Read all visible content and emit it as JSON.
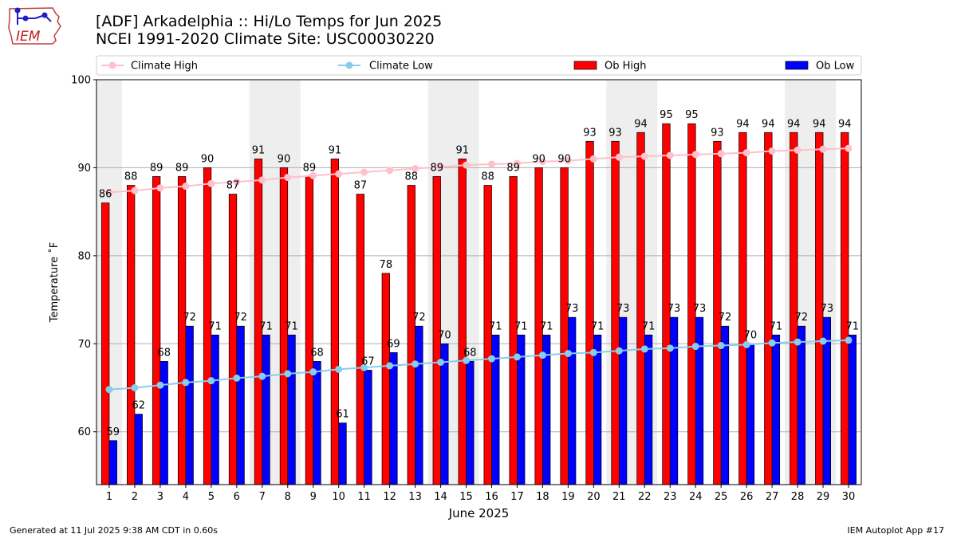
{
  "header": {
    "title_line1": "[ADF] Arkadelphia :: Hi/Lo Temps for Jun 2025",
    "title_line2": "NCEI 1991-2020 Climate Site: USC00030220",
    "logo_text": "IEM"
  },
  "footer": {
    "left": "Generated at 11 Jul 2025 9:38 AM CDT in 0.60s",
    "right": "IEM Autoplot App #17"
  },
  "colors": {
    "ob_high": "#ff0000",
    "ob_low": "#0000ff",
    "climate_high": "#ffc0cb",
    "climate_low": "#87ceeb",
    "weekend_band": "#eeeeee"
  },
  "chart_data": {
    "type": "bar",
    "xlabel": "June 2025",
    "ylabel": "Temperature $^\\circ$F",
    "ylim": [
      54,
      100
    ],
    "yticks": [
      60,
      70,
      80,
      90,
      100
    ],
    "grid": "horizontal",
    "legend_position": "top",
    "categories": [
      "1",
      "2",
      "3",
      "4",
      "5",
      "6",
      "7",
      "8",
      "9",
      "10",
      "11",
      "12",
      "13",
      "14",
      "15",
      "16",
      "17",
      "18",
      "19",
      "20",
      "21",
      "22",
      "23",
      "24",
      "25",
      "26",
      "27",
      "28",
      "29",
      "30"
    ],
    "weekend_days": [
      1,
      7,
      8,
      14,
      15,
      21,
      22,
      28,
      29
    ],
    "series": [
      {
        "name": "Climate High",
        "kind": "line",
        "values": [
          87.2,
          87.4,
          87.7,
          87.9,
          88.2,
          88.4,
          88.6,
          88.9,
          89.1,
          89.3,
          89.5,
          89.7,
          89.9,
          90.1,
          90.3,
          90.4,
          90.5,
          90.7,
          90.8,
          91.0,
          91.2,
          91.3,
          91.4,
          91.5,
          91.6,
          91.7,
          91.9,
          92.0,
          92.1,
          92.2
        ]
      },
      {
        "name": "Climate Low",
        "kind": "line",
        "values": [
          64.8,
          65.0,
          65.3,
          65.6,
          65.8,
          66.1,
          66.3,
          66.6,
          66.8,
          67.1,
          67.3,
          67.5,
          67.7,
          67.9,
          68.1,
          68.3,
          68.5,
          68.7,
          68.9,
          69.0,
          69.2,
          69.4,
          69.5,
          69.7,
          69.8,
          69.9,
          70.1,
          70.2,
          70.3,
          70.4
        ]
      },
      {
        "name": "Ob High",
        "kind": "bar",
        "values": [
          86,
          88,
          89,
          89,
          90,
          87,
          91,
          90,
          89,
          91,
          87,
          78,
          88,
          89,
          91,
          88,
          89,
          90,
          90,
          93,
          93,
          94,
          95,
          95,
          93,
          94,
          94,
          94,
          94,
          94
        ]
      },
      {
        "name": "Ob Low",
        "kind": "bar",
        "values": [
          59,
          62,
          68,
          72,
          71,
          72,
          71,
          71,
          68,
          61,
          67,
          69,
          72,
          70,
          68,
          71,
          71,
          71,
          73,
          71,
          73,
          71,
          73,
          73,
          72,
          70,
          71,
          72,
          73,
          71
        ]
      }
    ]
  }
}
